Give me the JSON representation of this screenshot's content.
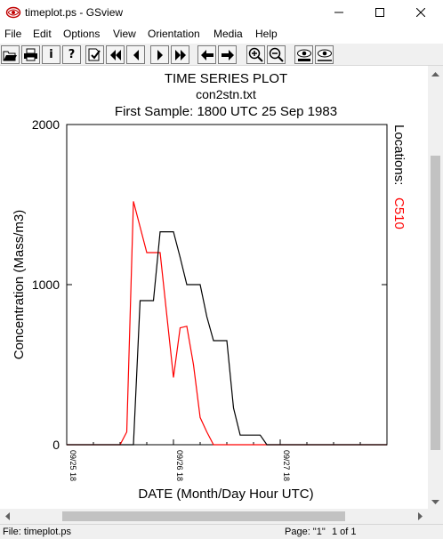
{
  "window": {
    "title": "timeplot.ps - GSview",
    "minimize_icon": "minimize-icon",
    "maximize_icon": "maximize-icon",
    "close_icon": "close-icon"
  },
  "menu": [
    "File",
    "Edit",
    "Options",
    "View",
    "Orientation",
    "Media",
    "Help"
  ],
  "toolbar": {
    "buttons": [
      "open-icon",
      "print-icon",
      "info-icon",
      "help-icon",
      "goto-page-icon",
      "first-page-icon",
      "prev-page-icon",
      "next-page-icon",
      "last-page-icon",
      "back-icon",
      "forward-icon",
      "zoom-in-icon",
      "zoom-out-icon",
      "eye-show-icon",
      "eye-hide-icon"
    ],
    "info_label": "i",
    "help_label": "?"
  },
  "plot": {
    "title": "TIME SERIES PLOT",
    "subtitle": "con2stn.txt",
    "sample_line": "First Sample: 1800 UTC 25 Sep 1983",
    "locations_label": "Locations:",
    "location_name": "C510",
    "location_color": "#ff0000"
  },
  "chart_data": {
    "type": "line",
    "title": "TIME SERIES PLOT",
    "xlabel": "DATE (Month/Day Hour UTC)",
    "ylabel": "Concentration (Mass/m3)",
    "ylim": [
      0,
      2000
    ],
    "yticks": [
      "0",
      "1000",
      "2000"
    ],
    "xticks": [
      "09/25 18",
      "09/26 18",
      "09/27 18"
    ],
    "xlim_hours": [
      0,
      72
    ],
    "x_unit": "hours after 09/25 18 UTC",
    "series": [
      {
        "name": "C510",
        "color": "#ff0000",
        "x": [
          0,
          6,
          9,
          12,
          13.5,
          15,
          18,
          19.5,
          21,
          24,
          25.5,
          27,
          28.5,
          30,
          31.5,
          33,
          36,
          72
        ],
        "y": [
          0,
          0,
          0,
          0,
          80,
          1520,
          1200,
          1200,
          1200,
          420,
          730,
          740,
          500,
          170,
          80,
          0,
          0,
          0
        ]
      },
      {
        "name": "",
        "color": "#000000",
        "x": [
          0,
          12,
          15,
          16.5,
          18,
          19.5,
          21,
          24,
          25.5,
          27,
          28.5,
          30,
          31.5,
          33,
          36,
          37.5,
          39,
          42,
          43.5,
          45,
          48,
          72
        ],
        "y": [
          0,
          0,
          0,
          900,
          900,
          900,
          1330,
          1330,
          1170,
          1000,
          1000,
          1000,
          800,
          650,
          650,
          230,
          60,
          60,
          60,
          0,
          0,
          0
        ]
      }
    ]
  },
  "hscroll": {
    "left_icon": "scroll-left-icon",
    "right_icon": "scroll-right-icon"
  },
  "vscroll": {
    "up_icon": "scroll-up-icon",
    "down_icon": "scroll-down-icon"
  },
  "status": {
    "file": "File: timeplot.ps",
    "page": "Page: \"1\"",
    "page_of": "1 of 1"
  }
}
